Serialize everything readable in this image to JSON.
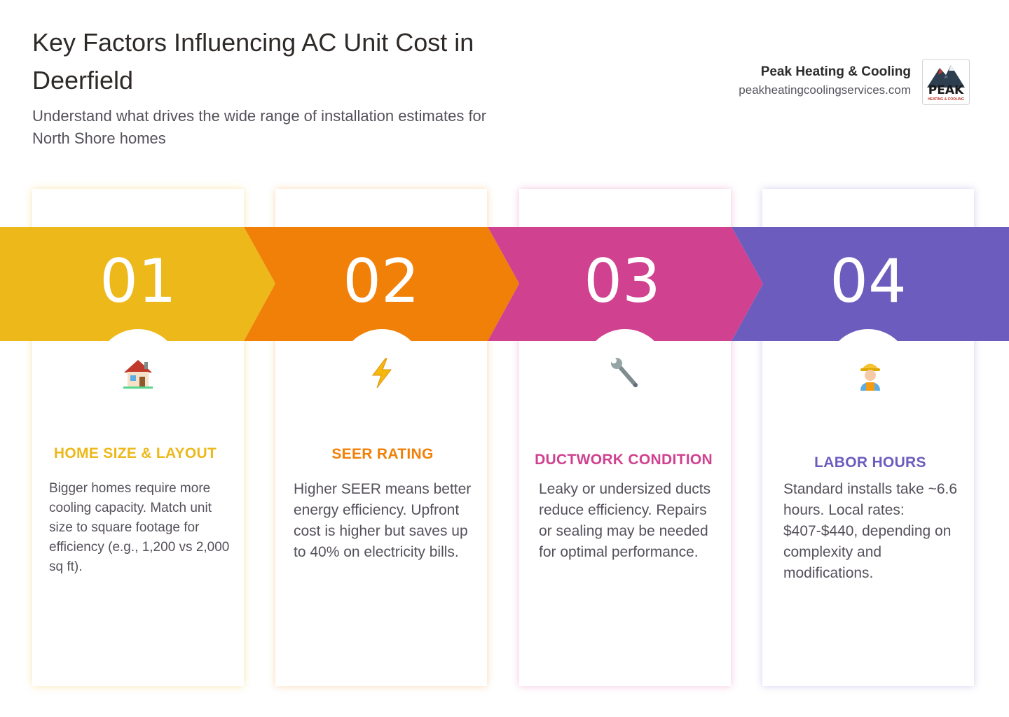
{
  "header": {
    "title": "Key Factors Influencing AC Unit Cost in Deerfield",
    "subtitle": "Understand what drives the wide range of installation estimates for North Shore homes"
  },
  "brand": {
    "name": "Peak Heating & Cooling",
    "url": "peakheatingcoolingservices.com",
    "logo_text": "PEAK",
    "logo_subtext": "HEATING & COOLING"
  },
  "factors": [
    {
      "number": "01",
      "icon": "house-icon",
      "color": "#ECB81A",
      "label": "HOME SIZE & LAYOUT",
      "description": "Bigger homes require more cooling capacity. Match unit size to square footage for efficiency (e.g., 1,200 vs 2,000 sq ft)."
    },
    {
      "number": "02",
      "icon": "lightning-icon",
      "color": "#F08008",
      "label": "SEER RATING",
      "description": "Higher SEER means better energy efficiency. Upfront cost is higher but saves up to 40% on electricity bills."
    },
    {
      "number": "03",
      "icon": "wrench-icon",
      "color": "#D04290",
      "label": "DUCTWORK CONDITION",
      "description": "Leaky or undersized ducts reduce efficiency. Repairs or sealing may be needed for optimal performance."
    },
    {
      "number": "04",
      "icon": "construction-worker-icon",
      "color": "#6C5CBE",
      "label": "LABOR HOURS",
      "description": "Standard installs take ~6.6 hours. Local rates: $407-$440, depending on complexity and modifications."
    }
  ]
}
